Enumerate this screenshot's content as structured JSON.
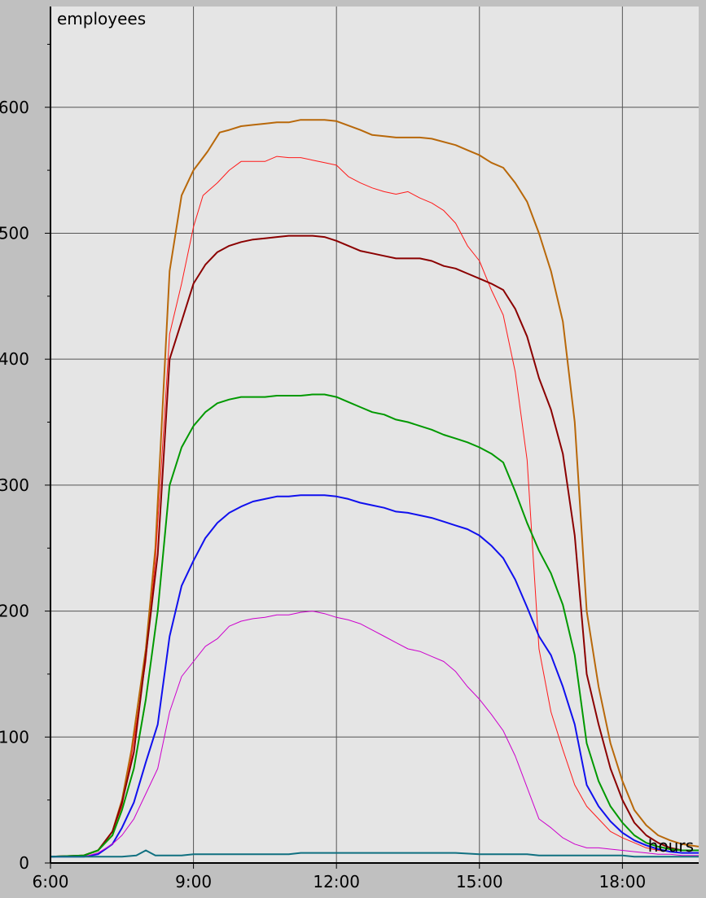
{
  "chart_data": {
    "type": "line",
    "ylabel": "employees",
    "xlabel": "hours",
    "xlim": [
      6,
      19.6
    ],
    "ylim": [
      0,
      680
    ],
    "x_ticks": [
      {
        "value": 6,
        "label": "6:00"
      },
      {
        "value": 9,
        "label": "9:00"
      },
      {
        "value": 12,
        "label": "12:00"
      },
      {
        "value": 15,
        "label": "15:00"
      },
      {
        "value": 18,
        "label": "18:00"
      }
    ],
    "y_ticks": [
      {
        "value": 0,
        "label": "0"
      },
      {
        "value": 100,
        "label": "100"
      },
      {
        "value": 200,
        "label": "200"
      },
      {
        "value": 300,
        "label": "300"
      },
      {
        "value": 400,
        "label": "400"
      },
      {
        "value": 500,
        "label": "500"
      },
      {
        "value": 600,
        "label": "600"
      }
    ],
    "y_minor_step": 50,
    "grid": true,
    "background": "#e5e5e5",
    "series": [
      {
        "color": "#b8680a",
        "width": 2,
        "x": [
          6,
          6.7,
          7.0,
          7.3,
          7.5,
          7.7,
          8.0,
          8.2,
          8.5,
          8.75,
          9.0,
          9.3,
          9.55,
          9.75,
          10.0,
          10.25,
          10.5,
          10.75,
          11.0,
          11.25,
          11.5,
          11.75,
          12.0,
          12.5,
          12.75,
          13.0,
          13.25,
          13.5,
          13.75,
          14.0,
          14.5,
          14.75,
          15.0,
          15.25,
          15.5,
          15.75,
          16.0,
          16.25,
          16.5,
          16.75,
          17.0,
          17.25,
          17.5,
          17.75,
          18.0,
          18.25,
          18.5,
          18.75,
          19.0,
          19.25,
          19.6
        ],
        "y": [
          5,
          6,
          10,
          25,
          50,
          90,
          170,
          250,
          470,
          530,
          550,
          565,
          580,
          582,
          585,
          586,
          587,
          588,
          588,
          590,
          590,
          590,
          589,
          582,
          578,
          577,
          576,
          576,
          576,
          575,
          570,
          566,
          562,
          556,
          552,
          540,
          525,
          500,
          470,
          430,
          350,
          200,
          140,
          95,
          65,
          42,
          30,
          22,
          18,
          15,
          13
        ]
      },
      {
        "color": "#ff1a1a",
        "width": 1,
        "x": [
          6,
          6.7,
          7.0,
          7.3,
          7.5,
          7.7,
          8.0,
          8.2,
          8.5,
          8.75,
          9.0,
          9.2,
          9.5,
          9.75,
          10.0,
          10.25,
          10.5,
          10.75,
          11.0,
          11.25,
          11.5,
          11.75,
          12.0,
          12.25,
          12.5,
          12.75,
          13.0,
          13.25,
          13.5,
          13.75,
          14.0,
          14.25,
          14.5,
          14.75,
          15.0,
          15.25,
          15.5,
          15.75,
          16.0,
          16.25,
          16.5,
          16.75,
          17.0,
          17.25,
          17.5,
          17.75,
          18.0,
          18.25,
          18.5,
          18.75,
          19.0,
          19.25,
          19.6
        ],
        "y": [
          5,
          6,
          10,
          25,
          45,
          85,
          160,
          240,
          420,
          460,
          505,
          530,
          540,
          550,
          557,
          557,
          557,
          561,
          560,
          560,
          558,
          556,
          554,
          545,
          540,
          536,
          533,
          531,
          533,
          528,
          524,
          518,
          508,
          490,
          478,
          455,
          435,
          390,
          320,
          170,
          120,
          90,
          62,
          45,
          35,
          25,
          20,
          16,
          12,
          10,
          9,
          8,
          8
        ]
      },
      {
        "color": "#8b0000",
        "width": 2,
        "x": [
          6,
          6.7,
          7.0,
          7.3,
          7.5,
          7.75,
          8.0,
          8.25,
          8.5,
          8.75,
          9.0,
          9.25,
          9.5,
          9.75,
          10.0,
          10.25,
          10.5,
          10.75,
          11.0,
          11.25,
          11.5,
          11.75,
          12.0,
          12.25,
          12.5,
          12.75,
          13.0,
          13.25,
          13.5,
          13.75,
          14.0,
          14.25,
          14.5,
          14.75,
          15.0,
          15.25,
          15.5,
          15.75,
          16.0,
          16.25,
          16.5,
          16.75,
          17.0,
          17.25,
          17.5,
          17.75,
          18.0,
          18.25,
          18.5,
          18.75,
          19.0,
          19.25,
          19.6
        ],
        "y": [
          5,
          6,
          10,
          25,
          48,
          88,
          165,
          245,
          400,
          430,
          460,
          475,
          485,
          490,
          493,
          495,
          496,
          497,
          498,
          498,
          498,
          497,
          494,
          490,
          486,
          484,
          482,
          480,
          480,
          480,
          478,
          474,
          472,
          468,
          464,
          460,
          455,
          440,
          418,
          385,
          360,
          325,
          260,
          150,
          110,
          75,
          50,
          32,
          22,
          16,
          12,
          10,
          10
        ]
      },
      {
        "color": "#009900",
        "width": 2,
        "x": [
          6,
          6.7,
          7.0,
          7.3,
          7.5,
          7.75,
          8.0,
          8.25,
          8.5,
          8.75,
          9.0,
          9.25,
          9.5,
          9.75,
          10.0,
          10.25,
          10.5,
          10.75,
          11.0,
          11.25,
          11.5,
          11.75,
          12.0,
          12.25,
          12.5,
          12.75,
          13.0,
          13.25,
          13.5,
          13.75,
          14.0,
          14.25,
          14.5,
          14.75,
          15.0,
          15.25,
          15.5,
          15.75,
          16.0,
          16.25,
          16.5,
          16.75,
          17.0,
          17.25,
          17.5,
          17.75,
          18.0,
          18.25,
          18.5,
          18.75,
          19.0,
          19.25,
          19.6
        ],
        "y": [
          5,
          6,
          10,
          22,
          42,
          75,
          130,
          200,
          300,
          330,
          347,
          358,
          365,
          368,
          370,
          370,
          370,
          371,
          371,
          371,
          372,
          372,
          370,
          366,
          362,
          358,
          356,
          352,
          350,
          347,
          344,
          340,
          337,
          334,
          330,
          325,
          318,
          295,
          270,
          248,
          230,
          205,
          165,
          95,
          65,
          45,
          32,
          22,
          16,
          13,
          11,
          10,
          10
        ]
      },
      {
        "color": "#1010ee",
        "width": 2,
        "x": [
          6,
          6.7,
          7.0,
          7.3,
          7.5,
          7.75,
          8.0,
          8.25,
          8.5,
          8.75,
          9.0,
          9.25,
          9.5,
          9.75,
          10.0,
          10.25,
          10.5,
          10.75,
          11.0,
          11.25,
          11.5,
          11.75,
          12.0,
          12.25,
          12.5,
          12.75,
          13.0,
          13.25,
          13.5,
          13.75,
          14.0,
          14.25,
          14.5,
          14.75,
          15.0,
          15.25,
          15.5,
          15.75,
          16.0,
          16.25,
          16.5,
          16.75,
          17.0,
          17.25,
          17.5,
          17.75,
          18.0,
          18.25,
          18.5,
          18.75,
          19.0,
          19.25,
          19.6
        ],
        "y": [
          5,
          5,
          7,
          15,
          28,
          48,
          80,
          110,
          180,
          220,
          240,
          258,
          270,
          278,
          283,
          287,
          289,
          291,
          291,
          292,
          292,
          292,
          291,
          289,
          286,
          284,
          282,
          279,
          278,
          276,
          274,
          271,
          268,
          265,
          260,
          252,
          242,
          225,
          203,
          180,
          165,
          140,
          110,
          62,
          45,
          33,
          24,
          18,
          14,
          11,
          9,
          8,
          8
        ]
      },
      {
        "color": "#cc00cc",
        "width": 1,
        "x": [
          6,
          6.7,
          7.0,
          7.3,
          7.5,
          7.75,
          8.0,
          8.25,
          8.5,
          8.75,
          9.0,
          9.25,
          9.5,
          9.75,
          10.0,
          10.25,
          10.5,
          10.75,
          11.0,
          11.25,
          11.5,
          11.75,
          12.0,
          12.25,
          12.5,
          12.75,
          13.0,
          13.25,
          13.5,
          13.75,
          14.0,
          14.25,
          14.5,
          14.75,
          15.0,
          15.25,
          15.5,
          15.75,
          16.0,
          16.25,
          16.5,
          16.75,
          17.0,
          17.25,
          17.5,
          17.75,
          18.0,
          18.25,
          18.5,
          18.75,
          19.0,
          19.25,
          19.6
        ],
        "y": [
          5,
          5,
          8,
          15,
          22,
          35,
          55,
          75,
          120,
          148,
          160,
          172,
          178,
          188,
          192,
          194,
          195,
          197,
          197,
          199,
          200,
          198,
          195,
          193,
          190,
          185,
          180,
          175,
          170,
          168,
          164,
          160,
          152,
          140,
          130,
          118,
          105,
          85,
          60,
          35,
          28,
          20,
          15,
          12,
          12,
          11,
          10,
          9,
          8,
          7,
          7,
          6,
          6
        ]
      },
      {
        "color": "#107080",
        "width": 2,
        "x": [
          6,
          7.5,
          7.8,
          8.0,
          8.2,
          8.5,
          8.75,
          9.0,
          10.0,
          11.0,
          11.25,
          12.0,
          13.0,
          14.0,
          14.5,
          15.0,
          16.0,
          16.25,
          17.0,
          18.0,
          18.25,
          19.0,
          19.6
        ],
        "y": [
          5,
          5,
          6,
          10,
          6,
          6,
          6,
          7,
          7,
          7,
          8,
          8,
          8,
          8,
          8,
          7,
          7,
          6,
          6,
          6,
          5,
          5,
          5
        ]
      }
    ]
  }
}
